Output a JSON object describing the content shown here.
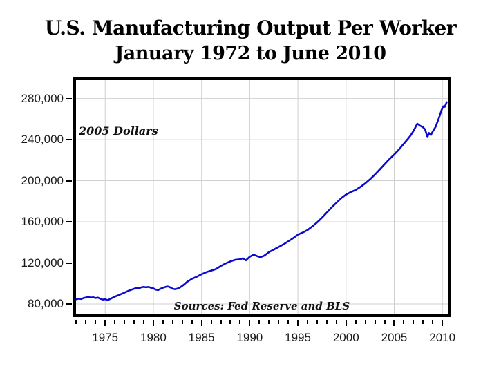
{
  "title": {
    "line1": "U.S. Manufacturing Output Per Worker",
    "line2": "January 1972 to June 2010"
  },
  "annotations": {
    "units": "2005 Dollars",
    "sources": "Sources: Fed Reserve and BLS"
  },
  "colors": {
    "line": "#0a0acc",
    "grid": "#d0d0d0",
    "frame": "#000000",
    "text": "#1a1a1a"
  },
  "chart_data": {
    "type": "line",
    "title": "U.S. Manufacturing Output Per Worker",
    "subtitle": "January 1972 to June 2010",
    "xlabel": "",
    "ylabel": "2005 Dollars",
    "grid": true,
    "legend_position": "none",
    "xlim": [
      1971.97,
      2010.56
    ],
    "ylim": [
      69900,
      297900
    ],
    "x_ticks_major": [
      1975,
      1980,
      1985,
      1990,
      1995,
      2000,
      2005,
      2010
    ],
    "x_minor_start": 1972,
    "x_minor_end": 2010,
    "x_minor_interval": 1,
    "y_ticks": [
      80000,
      120000,
      160000,
      200000,
      240000,
      280000
    ],
    "y_tick_labels": [
      "80,000",
      "120,000",
      "160,000",
      "200,000",
      "240,000",
      "280,000"
    ],
    "series": [
      {
        "name": "Manufacturing output per worker, 2005 dollars",
        "color": "#0a0acc",
        "points": [
          [
            1972.0,
            84500
          ],
          [
            1972.25,
            85200
          ],
          [
            1972.5,
            84800
          ],
          [
            1972.75,
            85800
          ],
          [
            1973.0,
            86300
          ],
          [
            1973.25,
            86800
          ],
          [
            1973.5,
            86200
          ],
          [
            1973.75,
            86500
          ],
          [
            1974.0,
            85800
          ],
          [
            1974.25,
            86200
          ],
          [
            1974.5,
            85000
          ],
          [
            1974.75,
            84200
          ],
          [
            1975.0,
            84600
          ],
          [
            1975.25,
            83600
          ],
          [
            1975.5,
            84800
          ],
          [
            1975.75,
            86000
          ],
          [
            1976.0,
            87200
          ],
          [
            1976.5,
            89000
          ],
          [
            1977.0,
            91000
          ],
          [
            1977.5,
            93200
          ],
          [
            1978.0,
            94800
          ],
          [
            1978.25,
            95600
          ],
          [
            1978.5,
            95200
          ],
          [
            1978.75,
            96200
          ],
          [
            1979.0,
            96600
          ],
          [
            1979.25,
            96200
          ],
          [
            1979.5,
            96600
          ],
          [
            1979.75,
            95800
          ],
          [
            1980.0,
            95200
          ],
          [
            1980.25,
            94000
          ],
          [
            1980.5,
            93600
          ],
          [
            1980.75,
            94800
          ],
          [
            1981.0,
            95800
          ],
          [
            1981.25,
            96600
          ],
          [
            1981.5,
            97000
          ],
          [
            1981.75,
            96200
          ],
          [
            1982.0,
            94800
          ],
          [
            1982.25,
            94400
          ],
          [
            1982.5,
            95000
          ],
          [
            1982.75,
            96000
          ],
          [
            1983.0,
            97600
          ],
          [
            1983.25,
            99500
          ],
          [
            1983.5,
            101500
          ],
          [
            1983.75,
            103000
          ],
          [
            1984.0,
            104500
          ],
          [
            1984.5,
            106500
          ],
          [
            1985.0,
            109000
          ],
          [
            1985.5,
            111000
          ],
          [
            1986.0,
            112500
          ],
          [
            1986.5,
            114000
          ],
          [
            1987.0,
            117000
          ],
          [
            1987.5,
            119500
          ],
          [
            1988.0,
            121500
          ],
          [
            1988.5,
            123000
          ],
          [
            1989.0,
            123500
          ],
          [
            1989.3,
            124500
          ],
          [
            1989.6,
            122500
          ],
          [
            1990.0,
            126000
          ],
          [
            1990.4,
            128000
          ],
          [
            1990.8,
            126500
          ],
          [
            1991.1,
            125500
          ],
          [
            1991.5,
            127000
          ],
          [
            1992.0,
            130500
          ],
          [
            1992.5,
            133000
          ],
          [
            1993.0,
            135500
          ],
          [
            1993.5,
            138000
          ],
          [
            1994.0,
            141000
          ],
          [
            1994.5,
            144000
          ],
          [
            1995.0,
            147500
          ],
          [
            1995.5,
            149500
          ],
          [
            1996.0,
            152000
          ],
          [
            1996.5,
            155500
          ],
          [
            1997.0,
            159500
          ],
          [
            1997.5,
            164000
          ],
          [
            1998.0,
            169000
          ],
          [
            1998.5,
            174000
          ],
          [
            1999.0,
            178500
          ],
          [
            1999.5,
            183000
          ],
          [
            2000.0,
            186500
          ],
          [
            2000.5,
            189000
          ],
          [
            2001.0,
            191000
          ],
          [
            2001.5,
            194000
          ],
          [
            2002.0,
            197500
          ],
          [
            2002.5,
            201500
          ],
          [
            2003.0,
            206000
          ],
          [
            2003.5,
            211000
          ],
          [
            2004.0,
            216000
          ],
          [
            2004.5,
            221000
          ],
          [
            2005.0,
            225500
          ],
          [
            2005.5,
            230500
          ],
          [
            2006.0,
            236000
          ],
          [
            2006.4,
            240500
          ],
          [
            2006.7,
            244000
          ],
          [
            2007.0,
            248500
          ],
          [
            2007.4,
            255500
          ],
          [
            2007.7,
            253500
          ],
          [
            2008.0,
            252000
          ],
          [
            2008.2,
            250000
          ],
          [
            2008.45,
            242500
          ],
          [
            2008.6,
            246500
          ],
          [
            2008.8,
            244500
          ],
          [
            2009.0,
            248000
          ],
          [
            2009.3,
            252500
          ],
          [
            2009.5,
            257500
          ],
          [
            2009.7,
            262500
          ],
          [
            2009.9,
            268500
          ],
          [
            2010.1,
            272500
          ],
          [
            2010.25,
            272000
          ],
          [
            2010.45,
            276500
          ]
        ]
      }
    ]
  }
}
